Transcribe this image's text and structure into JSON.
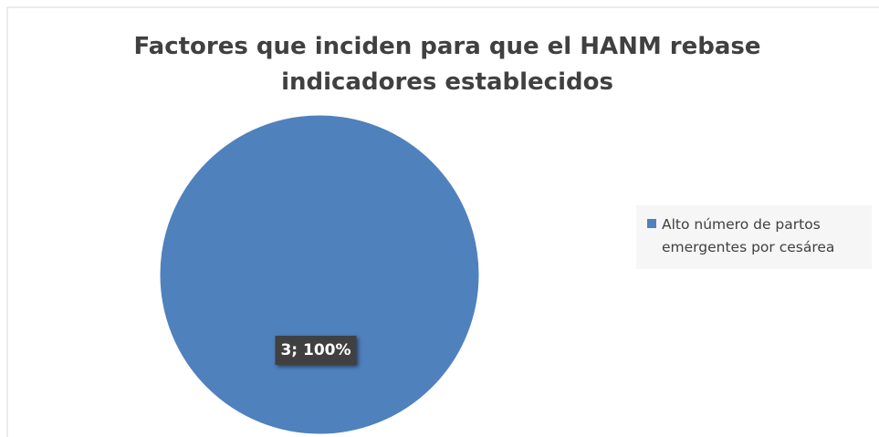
{
  "chart_data": {
    "type": "pie",
    "title": "Factores que inciden para que el HANM rebase indicadores establecidos",
    "categories": [
      "Alto número de partos emergentes por cesárea"
    ],
    "values": [
      3
    ],
    "value_labels": [
      "3; 100%"
    ],
    "colors": [
      "#4f81bd"
    ],
    "legend": "right"
  }
}
